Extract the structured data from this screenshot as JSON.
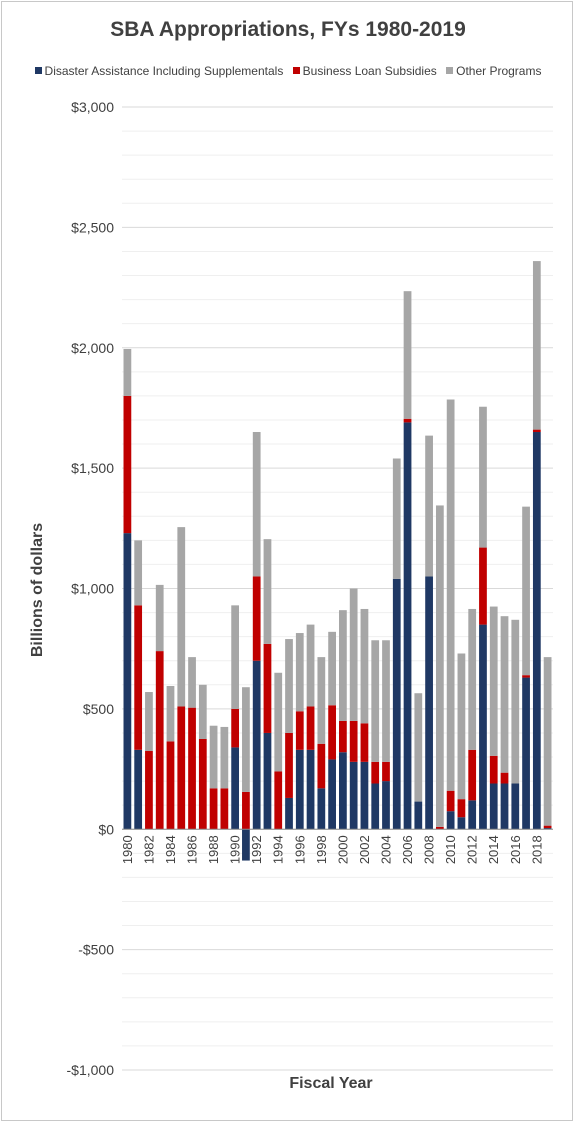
{
  "chart_data": {
    "type": "bar",
    "stacked": true,
    "title": "SBA Appropriations, FYs 1980-2019",
    "xlabel": "Fiscal Year",
    "ylabel": "Billions of dollars",
    "ylim": [
      -1000,
      3000
    ],
    "y_ticks": [
      -1000,
      -500,
      0,
      500,
      1000,
      1500,
      2000,
      2500,
      3000
    ],
    "y_tick_labels": [
      "-$1,000",
      "-$500",
      "$0",
      "$500",
      "$1,000",
      "$1,500",
      "$2,000",
      "$2,500",
      "$3,000"
    ],
    "x_tick_labels": [
      "1980",
      "1982",
      "1984",
      "1986",
      "1988",
      "1990",
      "1992",
      "1994",
      "1996",
      "1998",
      "2000",
      "2002",
      "2004",
      "2006",
      "2008",
      "2010",
      "2012",
      "2014",
      "2016",
      "2018"
    ],
    "grid": true,
    "legend_position": "top",
    "categories": [
      "1980",
      "1981",
      "1982",
      "1983",
      "1984",
      "1985",
      "1986",
      "1987",
      "1988",
      "1989",
      "1990",
      "1991",
      "1992",
      "1993",
      "1994",
      "1995",
      "1996",
      "1997",
      "1998",
      "1999",
      "2000",
      "2001",
      "2002",
      "2003",
      "2004",
      "2005",
      "2006",
      "2007",
      "2008",
      "2009",
      "2010",
      "2011",
      "2012",
      "2013",
      "2014",
      "2015",
      "2016",
      "2017",
      "2018",
      "2019"
    ],
    "series": [
      {
        "name": "Disaster Assistance Including Supplementals",
        "color": "#1f3864",
        "values": [
          1230,
          330,
          0,
          0,
          0,
          0,
          0,
          0,
          0,
          0,
          340,
          -130,
          700,
          400,
          0,
          130,
          330,
          330,
          170,
          290,
          320,
          280,
          280,
          190,
          200,
          1040,
          1690,
          115,
          1050,
          0,
          75,
          50,
          120,
          850,
          190,
          190,
          190,
          630,
          1650,
          5
        ]
      },
      {
        "name": "Business Loan Subsidies",
        "color": "#c00000",
        "values": [
          570,
          600,
          325,
          740,
          365,
          510,
          505,
          375,
          170,
          170,
          160,
          155,
          350,
          370,
          240,
          270,
          160,
          180,
          185,
          225,
          130,
          170,
          160,
          90,
          80,
          0,
          15,
          0,
          0,
          10,
          85,
          75,
          210,
          320,
          115,
          45,
          0,
          10,
          10,
          10
        ]
      },
      {
        "name": "Other Programs",
        "color": "#a6a6a6",
        "values": [
          195,
          270,
          245,
          275,
          230,
          745,
          210,
          225,
          260,
          255,
          430,
          435,
          600,
          435,
          410,
          390,
          325,
          340,
          360,
          305,
          460,
          550,
          475,
          505,
          505,
          500,
          530,
          450,
          585,
          1335,
          1625,
          605,
          585,
          585,
          620,
          650,
          680,
          700,
          700,
          700
        ]
      }
    ]
  }
}
